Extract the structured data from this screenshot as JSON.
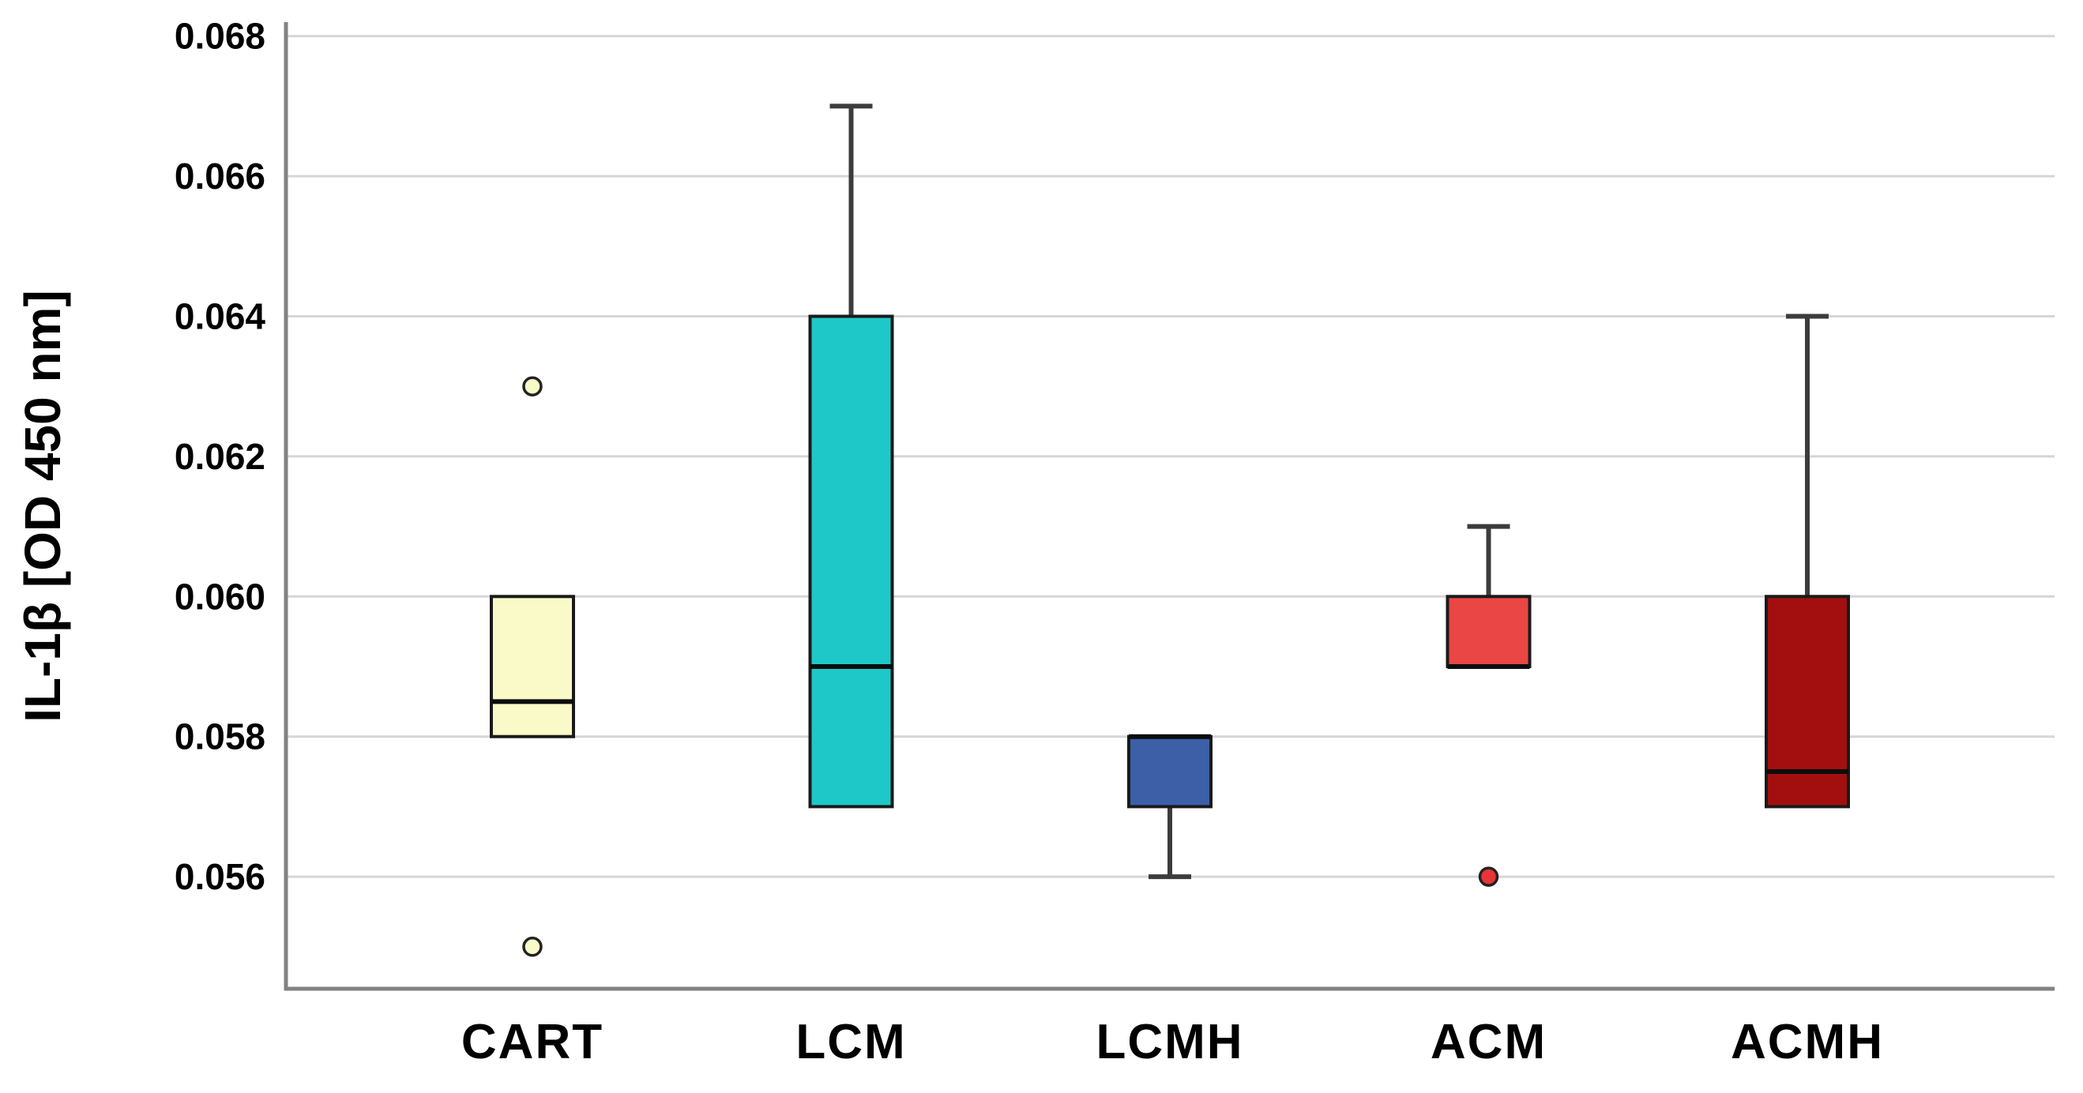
{
  "chart_data": {
    "type": "boxplot",
    "ylabel": "IL-1β [OD 450 nm]",
    "xlabel": "",
    "categories": [
      "CART",
      "LCM",
      "LCMH",
      "ACM",
      "ACMH"
    ],
    "ylim": [
      0.0544,
      0.0682
    ],
    "yticks": [
      0.056,
      0.058,
      0.06,
      0.062,
      0.064,
      0.066,
      0.068
    ],
    "ytick_labels": [
      "0.056",
      "0.058",
      "0.060",
      "0.062",
      "0.064",
      "0.066",
      "0.068"
    ],
    "grid": true,
    "legend": "none",
    "boxes": [
      {
        "category": "CART",
        "q1": 0.058,
        "median": 0.0585,
        "q3": 0.06,
        "whisker_low": null,
        "whisker_high": null,
        "outliers": [
          0.063,
          0.055
        ],
        "outlier_style": "open",
        "fill": "#FAFAC8",
        "outlier_fill": "#FAFAC8"
      },
      {
        "category": "LCM",
        "q1": 0.057,
        "median": 0.059,
        "q3": 0.064,
        "whisker_low": null,
        "whisker_high": 0.067,
        "outliers": [],
        "fill": "#1FC8C8"
      },
      {
        "category": "LCMH",
        "q1": 0.057,
        "median": 0.058,
        "q3": 0.058,
        "whisker_low": 0.056,
        "whisker_high": null,
        "outliers": [],
        "fill": "#3C5FA8"
      },
      {
        "category": "ACM",
        "q1": 0.059,
        "median": 0.059,
        "q3": 0.06,
        "whisker_low": null,
        "whisker_high": 0.061,
        "outliers": [
          0.056
        ],
        "outlier_style": "filled",
        "fill": "#E94645",
        "outlier_fill": "#E83535"
      },
      {
        "category": "ACMH",
        "q1": 0.057,
        "median": 0.0575,
        "q3": 0.06,
        "whisker_low": null,
        "whisker_high": 0.064,
        "outliers": [],
        "fill": "#A30F0F"
      }
    ],
    "style": {
      "grid_color": "#D6D6D6",
      "axis_color": "#828282",
      "box_edge_color": "#1A1A1A",
      "median_color": "#0D0D0D",
      "whisker_color": "#3C3C3C",
      "text_color": "#000000",
      "background": "#FFFFFF"
    }
  }
}
